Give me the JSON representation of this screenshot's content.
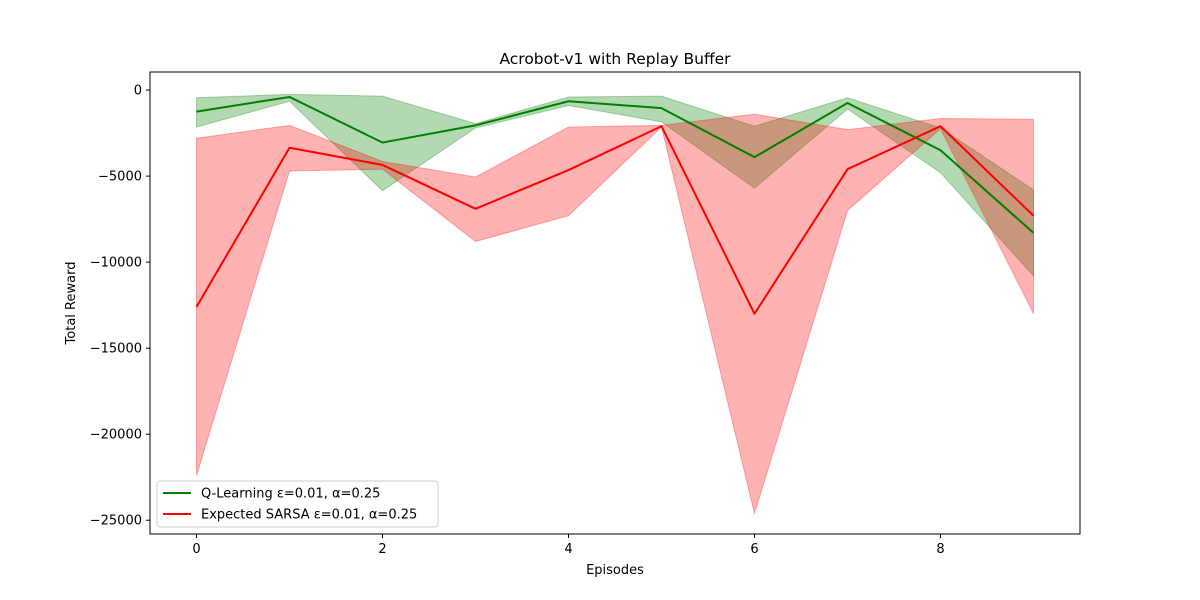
{
  "chart_data": {
    "type": "line",
    "title": "Acrobot-v1 with Replay Buffer",
    "xlabel": "Episodes",
    "ylabel": "Total Reward",
    "x": [
      0,
      1,
      2,
      3,
      4,
      5,
      6,
      7,
      8,
      9
    ],
    "xlim": [
      -0.5,
      9.5
    ],
    "ylim": [
      -25800,
      1050
    ],
    "xticks": [
      0,
      2,
      4,
      6,
      8
    ],
    "xtick_labels": [
      "0",
      "2",
      "4",
      "6",
      "8"
    ],
    "yticks": [
      0,
      -5000,
      -10000,
      -15000,
      -20000,
      -25000
    ],
    "ytick_labels": [
      "0",
      "−5000",
      "−10000",
      "−15000",
      "−20000",
      "−25000"
    ],
    "grid": false,
    "legend_position": "lower-left",
    "series": [
      {
        "name": "Q-Learning ε=0.01, α=0.25",
        "color": "#008000",
        "fill_color": "#008000",
        "values": [
          -1250,
          -400,
          -3050,
          -2050,
          -650,
          -1050,
          -3900,
          -750,
          -3500,
          -8300
        ],
        "lower": [
          -2150,
          -650,
          -5850,
          -2200,
          -900,
          -1850,
          -5700,
          -1100,
          -4800,
          -10800
        ],
        "upper": [
          -450,
          -250,
          -350,
          -1950,
          -400,
          -350,
          -2100,
          -450,
          -2200,
          -5800
        ]
      },
      {
        "name": "Expected SARSA ε=0.01, α=0.25",
        "color": "#ff0000",
        "fill_color": "#ff0000",
        "values": [
          -12600,
          -3350,
          -4350,
          -6900,
          -4650,
          -2100,
          -13000,
          -4600,
          -2100,
          -7300
        ],
        "lower": [
          -22400,
          -4700,
          -4600,
          -8800,
          -7300,
          -2150,
          -24600,
          -7000,
          -2250,
          -13000
        ],
        "upper": [
          -2800,
          -2050,
          -4150,
          -5050,
          -2150,
          -2050,
          -1400,
          -2300,
          -1650,
          -1700
        ]
      }
    ]
  }
}
